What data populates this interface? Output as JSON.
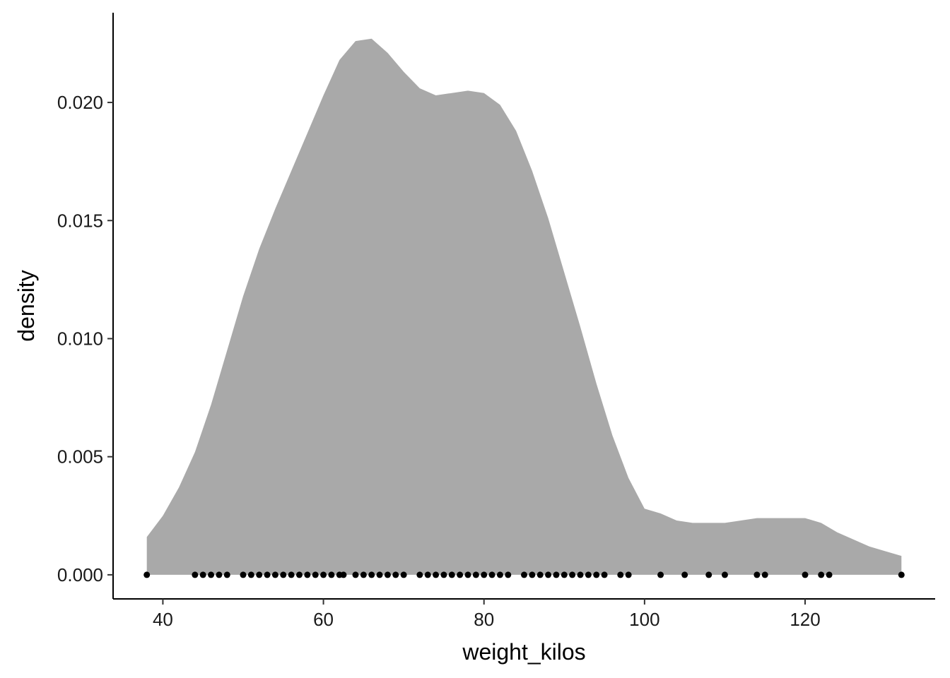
{
  "chart_data": {
    "type": "area",
    "title": "",
    "xlabel": "weight_kilos",
    "ylabel": "density",
    "xlim": [
      33.8,
      136.2
    ],
    "ylim": [
      -0.00102,
      0.0238
    ],
    "x_ticks": [
      40,
      60,
      80,
      100,
      120
    ],
    "x_tick_labels": [
      "40",
      "60",
      "80",
      "100",
      "120"
    ],
    "y_ticks": [
      0,
      0.005,
      0.01,
      0.015,
      0.02
    ],
    "y_tick_labels": [
      "0.000",
      "0.005",
      "0.010",
      "0.015",
      "0.020"
    ],
    "grid": false,
    "legend": "none",
    "fill_color": "#a9a9a9",
    "point_color": "#000000",
    "density_curve": {
      "x": [
        38,
        40,
        42,
        44,
        46,
        48,
        50,
        52,
        54,
        56,
        58,
        60,
        62,
        64,
        66,
        68,
        70,
        72,
        74,
        76,
        78,
        80,
        82,
        84,
        86,
        88,
        90,
        92,
        94,
        96,
        98,
        100,
        102,
        104,
        106,
        108,
        110,
        112,
        114,
        116,
        118,
        120,
        122,
        124,
        126,
        128,
        130,
        132
      ],
      "y": [
        0.0016,
        0.0025,
        0.0037,
        0.0052,
        0.0072,
        0.0095,
        0.0118,
        0.0138,
        0.0155,
        0.0171,
        0.0187,
        0.0203,
        0.0218,
        0.0226,
        0.0227,
        0.0221,
        0.0213,
        0.0206,
        0.0203,
        0.0204,
        0.0205,
        0.0204,
        0.0199,
        0.0188,
        0.0171,
        0.0151,
        0.0128,
        0.0105,
        0.0081,
        0.0059,
        0.0041,
        0.0028,
        0.0026,
        0.0023,
        0.0022,
        0.0022,
        0.0022,
        0.0023,
        0.0024,
        0.0024,
        0.0024,
        0.0024,
        0.0022,
        0.0018,
        0.0015,
        0.0012,
        0.001,
        0.0008
      ]
    },
    "rug_points": [
      38,
      44,
      45,
      46,
      47,
      48,
      50,
      51,
      52,
      53,
      54,
      55,
      56,
      57,
      58,
      59,
      60,
      61,
      62,
      62.5,
      64,
      65,
      66,
      67,
      68,
      69,
      70,
      72,
      73,
      74,
      75,
      76,
      77,
      78,
      79,
      80,
      81,
      82,
      83,
      85,
      86,
      87,
      88,
      89,
      90,
      91,
      92,
      93,
      94,
      95,
      97,
      98,
      102,
      105,
      108,
      110,
      114,
      115,
      120,
      122,
      123,
      132
    ]
  }
}
